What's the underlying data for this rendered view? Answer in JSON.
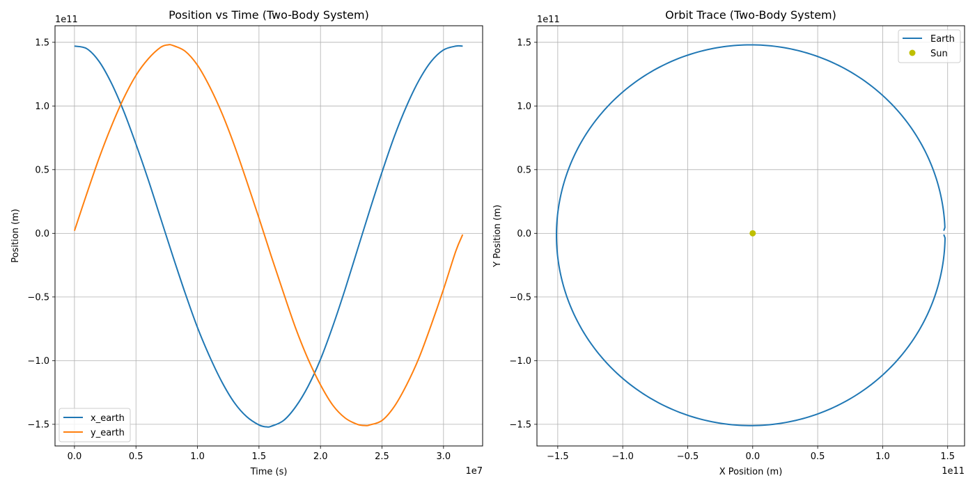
{
  "chart_data": [
    {
      "type": "line",
      "title": "Position vs Time (Two-Body System)",
      "xlabel": "Time (s)",
      "ylabel": "Position (m)",
      "x_offset_text": "1e7",
      "y_offset_text": "1e11",
      "xlim": [
        -1580000,
        33180000
      ],
      "ylim": [
        -167000000000.0,
        163000000000.0
      ],
      "xticks": [
        0,
        5000000,
        10000000,
        15000000,
        20000000,
        25000000,
        30000000
      ],
      "xtick_labels": [
        "0.0",
        "0.5",
        "1.0",
        "1.5",
        "2.0",
        "2.5",
        "3.0"
      ],
      "yticks": [
        -150000000000.0,
        -100000000000.0,
        -50000000000.0,
        0,
        50000000000.0,
        100000000000.0,
        150000000000.0
      ],
      "ytick_labels": [
        "−1.5",
        "−1.0",
        "−0.5",
        "0.0",
        "0.5",
        "1.0",
        "1.5"
      ],
      "grid": true,
      "legend_position": "lower left",
      "series": [
        {
          "name": "x_earth",
          "color": "#1f77b4",
          "x": [
            0,
            1000000,
            2000000,
            3000000,
            4000000,
            5000000,
            6000000,
            7000000,
            8000000,
            9000000,
            10000000,
            11000000,
            12000000,
            13000000,
            14000000,
            15000000,
            15600000,
            16000000,
            17000000,
            18000000,
            19000000,
            20000000,
            21000000,
            22000000,
            23000000,
            24000000,
            25000000,
            26000000,
            27000000,
            28000000,
            29000000,
            30000000,
            31000000,
            31560000
          ],
          "y": [
            147000000000.0,
            145000000000.0,
            135000000000.0,
            118000000000.0,
            96000000000.0,
            70000000000.0,
            42000000000.0,
            12000000000.0,
            -18000000000.0,
            -47000000000.0,
            -74000000000.0,
            -97000000000.0,
            -117000000000.0,
            -133000000000.0,
            -144000000000.0,
            -150500000000.0,
            -152000000000.0,
            -151500000000.0,
            -147000000000.0,
            -136000000000.0,
            -120000000000.0,
            -99000000000.0,
            -73000000000.0,
            -44000000000.0,
            -13000000000.0,
            18000000000.0,
            48000000000.0,
            76000000000.0,
            100000000000.0,
            120000000000.0,
            135000000000.0,
            144000000000.0,
            147000000000.0,
            147000000000.0
          ]
        },
        {
          "name": "y_earth",
          "color": "#ff7f0e",
          "x": [
            0,
            1000000,
            2000000,
            3000000,
            4000000,
            5000000,
            6000000,
            7000000,
            7600000,
            8000000,
            9000000,
            10000000,
            11000000,
            12000000,
            13000000,
            14000000,
            15000000,
            16000000,
            17000000,
            18000000,
            19000000,
            20000000,
            21000000,
            22000000,
            23000000,
            23700000,
            24000000,
            25000000,
            26000000,
            27000000,
            28000000,
            29000000,
            30000000,
            31000000,
            31560000
          ],
          "y": [
            2000000000.0,
            31000000000.0,
            59000000000.0,
            84000000000.0,
            106000000000.0,
            124000000000.0,
            137000000000.0,
            146000000000.0,
            148000000000.0,
            147500000000.0,
            143000000000.0,
            132000000000.0,
            115000000000.0,
            94000000000.0,
            69000000000.0,
            41000000000.0,
            12000000000.0,
            -18000000000.0,
            -47000000000.0,
            -75000000000.0,
            -99000000000.0,
            -119000000000.0,
            -135000000000.0,
            -145000000000.0,
            -150000000000.0,
            -151000000000.0,
            -150500000000.0,
            -147000000000.0,
            -136000000000.0,
            -119000000000.0,
            -98000000000.0,
            -72000000000.0,
            -44000000000.0,
            -14000000000.0,
            -1000000000.0
          ]
        }
      ]
    },
    {
      "type": "line",
      "title": "Orbit Trace (Two-Body System)",
      "xlabel": "X Position (m)",
      "ylabel": "Y Position (m)",
      "x_offset_text": "1e11",
      "y_offset_text": "1e11",
      "xlim": [
        -166000000000.0,
        163000000000.0
      ],
      "ylim": [
        -167000000000.0,
        163000000000.0
      ],
      "xticks": [
        -150000000000.0,
        -100000000000.0,
        -50000000000.0,
        0,
        50000000000.0,
        100000000000.0,
        150000000000.0
      ],
      "xtick_labels": [
        "−1.5",
        "−1.0",
        "−0.5",
        "0.0",
        "0.5",
        "1.0",
        "1.5"
      ],
      "yticks": [
        -150000000000.0,
        -100000000000.0,
        -50000000000.0,
        0,
        50000000000.0,
        100000000000.0,
        150000000000.0
      ],
      "ytick_labels": [
        "−1.5",
        "−1.0",
        "−0.5",
        "0.0",
        "0.5",
        "1.0",
        "1.5"
      ],
      "grid": true,
      "legend_position": "upper right",
      "orbit": {
        "name": "Earth",
        "color": "#1f77b4",
        "center": [
          -1500000000.0,
          -1500000000.0
        ],
        "radius": 149500000000.0,
        "start_point": [
          147000000000.0,
          2000000000.0
        ],
        "end_point": [
          147000000000.0,
          -1000000000.0
        ]
      },
      "points": [
        {
          "name": "Sun",
          "color": "#bfbf00",
          "x": 0,
          "y": 0
        }
      ]
    }
  ]
}
